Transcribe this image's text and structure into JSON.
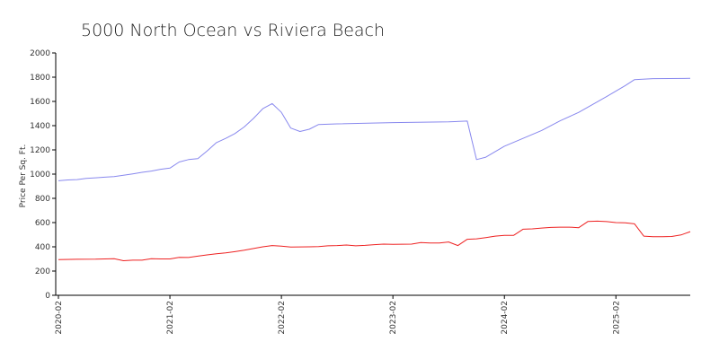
{
  "chart_data": {
    "type": "line",
    "title": "5000 North Ocean vs Riviera Beach",
    "xlabel": "",
    "ylabel": "Price Per Sq. Ft.",
    "ylim": [
      0,
      2000
    ],
    "yticks": [
      0,
      200,
      400,
      600,
      800,
      1000,
      1200,
      1400,
      1600,
      1800,
      2000
    ],
    "xlim": [
      "2020-02",
      "2025-10"
    ],
    "xticks": [
      "2020-02",
      "2021-02",
      "2022-02",
      "2023-02",
      "2024-02",
      "2025-02"
    ],
    "grid": false,
    "legend": "none",
    "series": [
      {
        "color": "#8888ee",
        "points": [
          [
            "2020-02",
            945
          ],
          [
            "2020-03",
            952
          ],
          [
            "2020-04",
            955
          ],
          [
            "2020-05",
            965
          ],
          [
            "2020-06",
            970
          ],
          [
            "2020-07",
            975
          ],
          [
            "2020-08",
            980
          ],
          [
            "2020-09",
            990
          ],
          [
            "2020-10",
            1002
          ],
          [
            "2020-11",
            1015
          ],
          [
            "2020-12",
            1025
          ],
          [
            "2021-01",
            1040
          ],
          [
            "2021-02",
            1050
          ],
          [
            "2021-03",
            1100
          ],
          [
            "2021-04",
            1120
          ],
          [
            "2021-05",
            1128
          ],
          [
            "2021-06",
            1190
          ],
          [
            "2021-07",
            1260
          ],
          [
            "2021-08",
            1295
          ],
          [
            "2021-09",
            1335
          ],
          [
            "2021-10",
            1390
          ],
          [
            "2021-11",
            1460
          ],
          [
            "2021-12",
            1540
          ],
          [
            "2022-01",
            1582
          ],
          [
            "2022-02",
            1510
          ],
          [
            "2022-03",
            1380
          ],
          [
            "2022-04",
            1352
          ],
          [
            "2022-05",
            1370
          ],
          [
            "2022-06",
            1410
          ],
          [
            "2022-08",
            1415
          ],
          [
            "2023-02",
            1425
          ],
          [
            "2023-08",
            1432
          ],
          [
            "2023-10",
            1438
          ],
          [
            "2023-11",
            1120
          ],
          [
            "2023-12",
            1140
          ],
          [
            "2024-02",
            1230
          ],
          [
            "2024-06",
            1360
          ],
          [
            "2024-08",
            1440
          ],
          [
            "2024-10",
            1510
          ],
          [
            "2025-01",
            1640
          ],
          [
            "2025-03",
            1730
          ],
          [
            "2025-04",
            1780
          ],
          [
            "2025-06",
            1788
          ],
          [
            "2025-10",
            1790
          ]
        ]
      },
      {
        "color": "#ee2222",
        "points": [
          [
            "2020-02",
            295
          ],
          [
            "2020-04",
            297
          ],
          [
            "2020-06",
            298
          ],
          [
            "2020-08",
            302
          ],
          [
            "2020-09",
            285
          ],
          [
            "2020-10",
            290
          ],
          [
            "2020-11",
            290
          ],
          [
            "2020-12",
            302
          ],
          [
            "2021-01",
            300
          ],
          [
            "2021-02",
            300
          ],
          [
            "2021-03",
            313
          ],
          [
            "2021-04",
            312
          ],
          [
            "2021-05",
            323
          ],
          [
            "2021-06",
            333
          ],
          [
            "2021-07",
            343
          ],
          [
            "2021-08",
            350
          ],
          [
            "2021-09",
            360
          ],
          [
            "2021-10",
            372
          ],
          [
            "2021-11",
            386
          ],
          [
            "2021-12",
            400
          ],
          [
            "2022-01",
            410
          ],
          [
            "2022-02",
            405
          ],
          [
            "2022-03",
            398
          ],
          [
            "2022-05",
            400
          ],
          [
            "2022-06",
            402
          ],
          [
            "2022-07",
            408
          ],
          [
            "2022-08",
            410
          ],
          [
            "2022-09",
            415
          ],
          [
            "2022-10",
            408
          ],
          [
            "2022-11",
            412
          ],
          [
            "2022-12",
            418
          ],
          [
            "2023-01",
            422
          ],
          [
            "2023-02",
            420
          ],
          [
            "2023-04",
            422
          ],
          [
            "2023-05",
            435
          ],
          [
            "2023-06",
            432
          ],
          [
            "2023-07",
            432
          ],
          [
            "2023-08",
            440
          ],
          [
            "2023-09",
            410
          ],
          [
            "2023-10",
            462
          ],
          [
            "2023-11",
            466
          ],
          [
            "2023-12",
            476
          ],
          [
            "2024-01",
            488
          ],
          [
            "2024-02",
            495
          ],
          [
            "2024-03",
            495
          ],
          [
            "2024-04",
            545
          ],
          [
            "2024-05",
            548
          ],
          [
            "2024-06",
            555
          ],
          [
            "2024-07",
            560
          ],
          [
            "2024-08",
            562
          ],
          [
            "2024-09",
            562
          ],
          [
            "2024-10",
            558
          ],
          [
            "2024-11",
            610
          ],
          [
            "2024-12",
            612
          ],
          [
            "2025-01",
            608
          ],
          [
            "2025-02",
            600
          ],
          [
            "2025-03",
            598
          ],
          [
            "2025-04",
            590
          ],
          [
            "2025-05",
            488
          ],
          [
            "2025-06",
            483
          ],
          [
            "2025-07",
            483
          ],
          [
            "2025-08",
            485
          ],
          [
            "2025-09",
            498
          ],
          [
            "2025-10",
            525
          ]
        ]
      }
    ]
  }
}
